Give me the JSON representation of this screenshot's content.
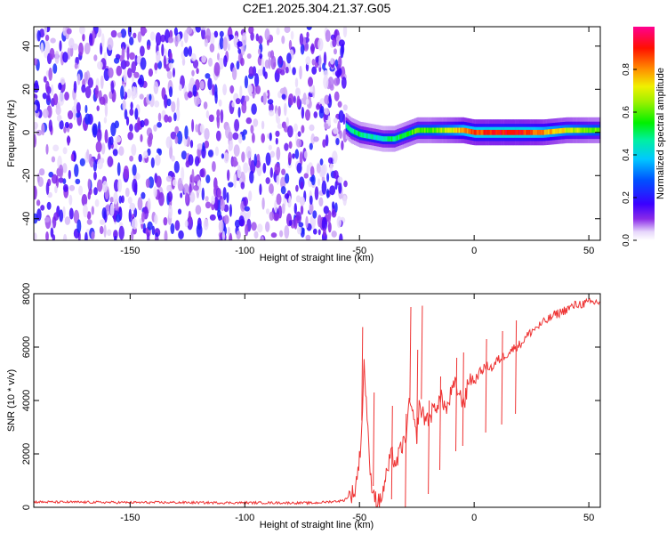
{
  "title": "C2E1.2025.304.21.37.G05",
  "colors": {
    "snr_line": "#ee3333",
    "colormap": [
      "#ffffff",
      "#c9a8f5",
      "#9a4df0",
      "#6a10ea",
      "#3a1fff",
      "#0030ff",
      "#0090ff",
      "#00e0e0",
      "#00f060",
      "#60f000",
      "#e0f000",
      "#ff9900",
      "#ff2200",
      "#ff0080"
    ],
    "axes": "#000000",
    "background": "#ffffff"
  },
  "chart_data": [
    {
      "type": "heatmap",
      "title": "",
      "xlabel": "Height of straight line (km)",
      "ylabel": "Frequency (Hz)",
      "xlim": [
        -192,
        55
      ],
      "ylim": [
        -50,
        49
      ],
      "xticks": [
        -150,
        -100,
        -50,
        0,
        50
      ],
      "yticks": [
        -40,
        -20,
        0,
        20,
        40
      ],
      "noise_region_x": [
        -192,
        -56
      ],
      "signal_track": {
        "description_points_x": [
          -56,
          -54,
          -50,
          -45,
          -40,
          -35,
          -30,
          -25,
          -20,
          -15,
          -10,
          -5,
          0,
          10,
          20,
          30,
          40,
          55
        ],
        "center_freq_hz": [
          3,
          1,
          -1,
          -2,
          -3,
          -3,
          -1,
          1,
          1,
          1,
          1,
          1,
          0,
          0,
          0,
          0,
          1,
          1
        ],
        "peak_amplitude": [
          0.45,
          0.5,
          0.5,
          0.45,
          0.45,
          0.5,
          0.55,
          0.6,
          0.6,
          0.65,
          0.7,
          0.8,
          0.85,
          0.9,
          0.9,
          0.8,
          0.7,
          0.6
        ]
      },
      "colorbar": {
        "label": "Normalized spectral amplitude",
        "range": [
          0.0,
          1.0
        ],
        "ticks": [
          "0.0",
          "0.2",
          "0.4",
          "0.6",
          "0.8"
        ]
      }
    },
    {
      "type": "line",
      "title": "",
      "xlabel": "Height of straight line (km)",
      "ylabel": "SNR (10 * v/v)",
      "xlim": [
        -192,
        55
      ],
      "ylim": [
        0,
        8000
      ],
      "xticks": [
        -150,
        -100,
        -50,
        0,
        50
      ],
      "yticks": [
        0,
        2000,
        4000,
        6000,
        8000
      ],
      "series": [
        {
          "name": "SNR",
          "x": [
            -192,
            -170,
            -150,
            -130,
            -110,
            -90,
            -70,
            -57,
            -52,
            -50,
            -49,
            -48,
            -47,
            -46,
            -45,
            -44,
            -43,
            -42,
            -41,
            -40,
            -38,
            -36,
            -34,
            -32,
            -30,
            -28,
            -26,
            -25,
            -24,
            -22,
            -20,
            -18,
            -16,
            -14,
            -12,
            -10,
            -8,
            -6,
            -4,
            -2,
            0,
            2,
            4,
            6,
            8,
            10,
            12,
            15,
            18,
            20,
            25,
            30,
            35,
            40,
            45,
            50,
            55
          ],
          "y": [
            200,
            190,
            180,
            180,
            170,
            170,
            160,
            250,
            600,
            1800,
            3000,
            5400,
            4000,
            2200,
            1000,
            700,
            350,
            150,
            250,
            500,
            1300,
            2000,
            1600,
            2200,
            2500,
            4000,
            3000,
            2700,
            3800,
            3400,
            3300,
            3600,
            3900,
            4100,
            3600,
            4300,
            4600,
            4100,
            4000,
            4900,
            4700,
            5000,
            5200,
            5300,
            5200,
            5500,
            5600,
            5800,
            6000,
            6100,
            6600,
            6900,
            7200,
            7400,
            7600,
            7650,
            7700
          ]
        },
        {
          "name": "SNR spikes",
          "x": [
            -49,
            -44,
            -36,
            -30,
            -28,
            -25,
            -23,
            -20,
            -15,
            -8,
            -5,
            5,
            12,
            18
          ],
          "y": [
            6750,
            4300,
            3800,
            3500,
            7500,
            5900,
            7550,
            4000,
            4900,
            5600,
            5800,
            6300,
            6600,
            7000
          ]
        }
      ]
    }
  ]
}
